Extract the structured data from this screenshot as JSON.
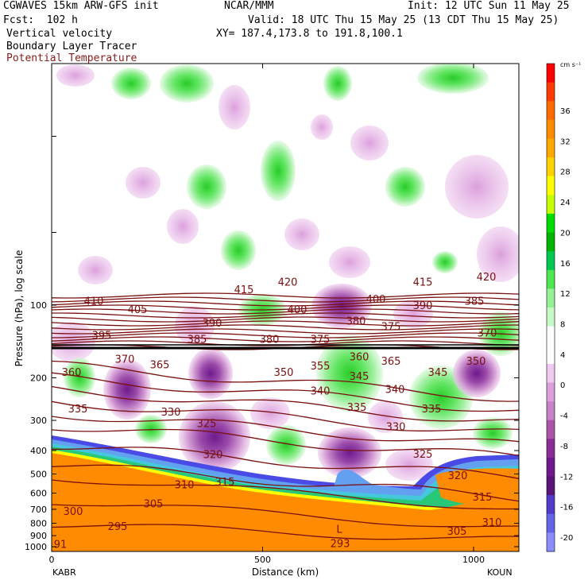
{
  "header": {
    "model": "CGWAVES 15km ARW-GFS init",
    "org": "NCAR/MMM",
    "init": "Init: 12 UTC Sun 11 May 25",
    "fcst": "Fcst:  102 h",
    "valid": "Valid: 18 UTC Thu 15 May 25 (13 CDT Thu 15 May 25)",
    "field1": "Vertical velocity",
    "xy": "XY= 187.4,173.8 to 191.8,100.1",
    "field2": "Boundary Layer Tracer",
    "field3": "Potential Temperature"
  },
  "chart_data": {
    "type": "contour cross-section",
    "xlabel": "Distance (km)",
    "ylabel": "Pressure (hPa), log scale",
    "x_ticks": [
      "0",
      "500",
      "1000"
    ],
    "y_ticks": [
      "100",
      "200",
      "300",
      "400",
      "500",
      "600",
      "700",
      "800",
      "900",
      "1000"
    ],
    "endpoints": {
      "left": "KABR",
      "right": "KOUN"
    },
    "colorbar": {
      "unit": "cm s⁻¹",
      "ticks": [
        "36",
        "32",
        "28",
        "24",
        "20",
        "16",
        "12",
        "8",
        "4",
        "0",
        "-4",
        "-8",
        "-12",
        "-16",
        "-20"
      ],
      "colors": [
        "#ff0000",
        "#ff3a00",
        "#ff6a00",
        "#ff8c00",
        "#ffa800",
        "#ffd200",
        "#ffff00",
        "#c8ff00",
        "#00dc00",
        "#00b400",
        "#00c850",
        "#50e650",
        "#96f096",
        "#c8fac8",
        "#ffffff",
        "#ffffff",
        "#f0c8f0",
        "#dca0dc",
        "#c882c8",
        "#aa55aa",
        "#8c2d96",
        "#6e1a8c",
        "#5a1478",
        "#503cc8",
        "#6464e6",
        "#8c8cff"
      ]
    },
    "theta_labels": [
      {
        "v": "420",
        "x": 362,
        "p": 80
      },
      {
        "v": "415",
        "x": 307,
        "p": 86
      },
      {
        "v": "415",
        "x": 532,
        "p": 80
      },
      {
        "v": "420",
        "x": 612,
        "p": 76
      },
      {
        "v": "410",
        "x": 118,
        "p": 96
      },
      {
        "v": "405",
        "x": 173,
        "p": 104
      },
      {
        "v": "400",
        "x": 374,
        "p": 104
      },
      {
        "v": "400",
        "x": 473,
        "p": 94
      },
      {
        "v": "390",
        "x": 267,
        "p": 118
      },
      {
        "v": "390",
        "x": 532,
        "p": 100
      },
      {
        "v": "385",
        "x": 597,
        "p": 96
      },
      {
        "v": "380",
        "x": 448,
        "p": 116
      },
      {
        "v": "375",
        "x": 492,
        "p": 122
      },
      {
        "v": "370",
        "x": 613,
        "p": 130
      },
      {
        "v": "395",
        "x": 128,
        "p": 133
      },
      {
        "v": "385",
        "x": 248,
        "p": 138
      },
      {
        "v": "380",
        "x": 339,
        "p": 138
      },
      {
        "v": "375",
        "x": 403,
        "p": 138
      },
      {
        "v": "360",
        "x": 452,
        "p": 163
      },
      {
        "v": "370",
        "x": 157,
        "p": 167
      },
      {
        "v": "365",
        "x": 201,
        "p": 176
      },
      {
        "v": "355",
        "x": 403,
        "p": 178
      },
      {
        "v": "365",
        "x": 492,
        "p": 170
      },
      {
        "v": "350",
        "x": 599,
        "p": 170
      },
      {
        "v": "360",
        "x": 90,
        "p": 189
      },
      {
        "v": "350",
        "x": 357,
        "p": 189
      },
      {
        "v": "345",
        "x": 452,
        "p": 196
      },
      {
        "v": "345",
        "x": 551,
        "p": 189
      },
      {
        "v": "340",
        "x": 403,
        "p": 226
      },
      {
        "v": "340",
        "x": 497,
        "p": 222
      },
      {
        "v": "335",
        "x": 98,
        "p": 268
      },
      {
        "v": "330",
        "x": 215,
        "p": 276
      },
      {
        "v": "335",
        "x": 449,
        "p": 264
      },
      {
        "v": "335",
        "x": 543,
        "p": 268
      },
      {
        "v": "325",
        "x": 260,
        "p": 308
      },
      {
        "v": "330",
        "x": 498,
        "p": 318
      },
      {
        "v": "320",
        "x": 268,
        "p": 414
      },
      {
        "v": "325",
        "x": 532,
        "p": 412
      },
      {
        "v": "320",
        "x": 576,
        "p": 505
      },
      {
        "v": "310",
        "x": 232,
        "p": 551
      },
      {
        "v": "315",
        "x": 283,
        "p": 538
      },
      {
        "v": "315",
        "x": 607,
        "p": 621
      },
      {
        "v": "305",
        "x": 193,
        "p": 662
      },
      {
        "v": "300",
        "x": 92,
        "p": 712
      },
      {
        "v": "310",
        "x": 619,
        "p": 791
      },
      {
        "v": "295",
        "x": 148,
        "p": 820
      },
      {
        "v": "305",
        "x": 575,
        "p": 858
      },
      {
        "v": "293",
        "x": 428,
        "p": 968
      }
    ],
    "annotations": [
      {
        "text": "L",
        "x": 427,
        "p": 843
      },
      {
        "text": "91",
        "x": 76,
        "p": 975
      }
    ]
  }
}
